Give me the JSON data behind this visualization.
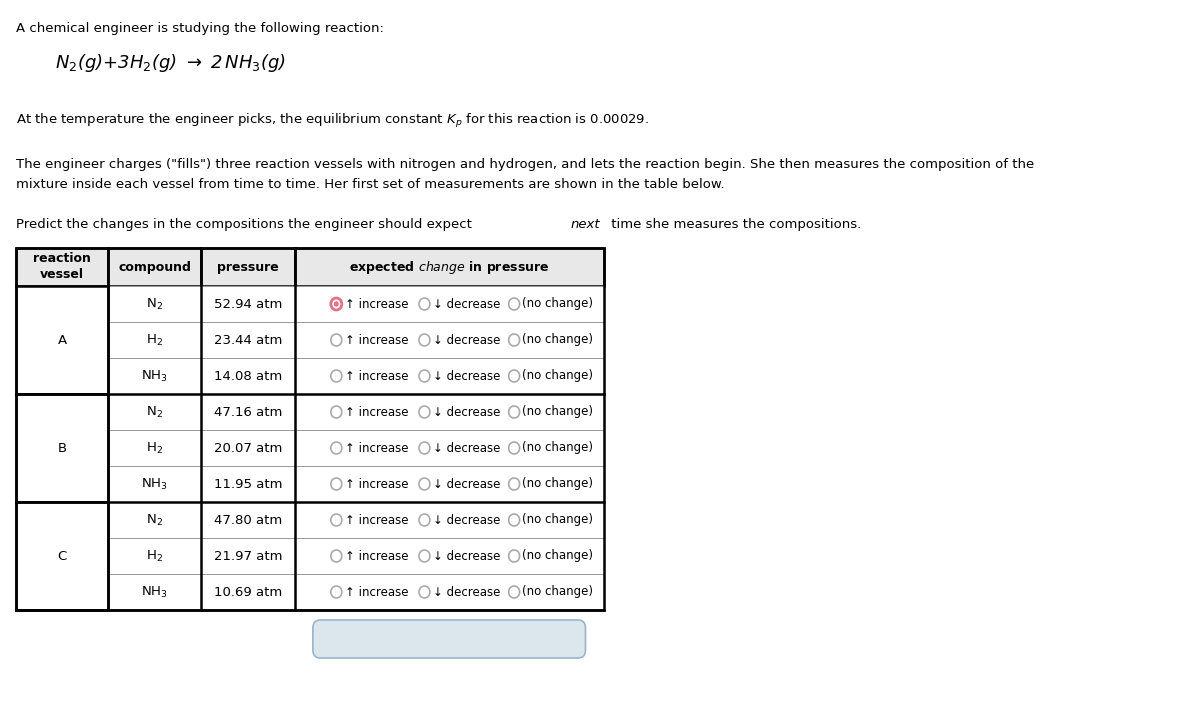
{
  "title_text": "A chemical engineer is studying the following reaction:",
  "reaction_eq": "N₂(g)+3H₂(g) → 2 NH₃(g)",
  "para1": "At the temperature the engineer picks, the equilibrium constant $K_p$ for this reaction is 0.00029.",
  "para2a": "The engineer charges (\"fills\") three reaction vessels with nitrogen and hydrogen, and lets the reaction begin. She then measures the composition of the",
  "para2b": "mixture inside each vessel from time to time. Her first set of measurements are shown in the table below.",
  "para3a": "Predict the changes in the compositions the engineer should expect ",
  "para3b": "next",
  "para3c": " time she measures the compositions.",
  "vessels": [
    "A",
    "B",
    "C"
  ],
  "compounds": [
    [
      "N2",
      "H2",
      "NH3"
    ],
    [
      "N2",
      "H2",
      "NH3"
    ],
    [
      "N2",
      "H2",
      "NH3"
    ]
  ],
  "pressures": [
    [
      "52.94 atm",
      "23.44 atm",
      "14.08 atm"
    ],
    [
      "47.16 atm",
      "20.07 atm",
      "11.95 atm"
    ],
    [
      "47.80 atm",
      "21.97 atm",
      "10.69 atm"
    ]
  ],
  "selected_vessel": 0,
  "selected_compound": 0,
  "selected_option": 0,
  "bg_color": "#ffffff",
  "header_bg": "#e8e8e8",
  "btn_bg": "#dce6ed",
  "btn_border": "#9ab4c8",
  "btn_text_color": "#3a7db5",
  "radio_pink": "#e8708a",
  "radio_gray": "#aaaaaa",
  "table_thick_lw": 1.8,
  "table_thin_lw": 0.7
}
